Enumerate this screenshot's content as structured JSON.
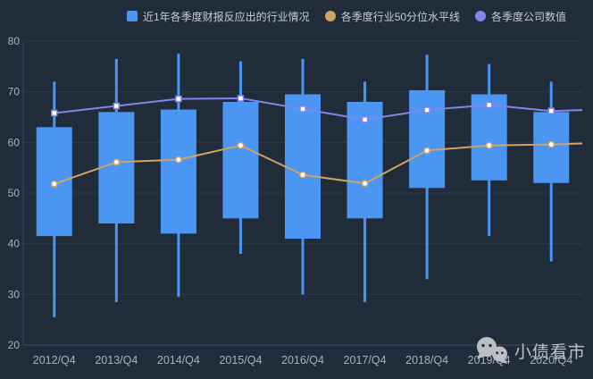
{
  "legend": {
    "items": [
      {
        "label": "近1年各季度财报反应出的行业情况",
        "marker": "square",
        "color": "#4b96f3"
      },
      {
        "label": "各季度行业50分位水平线",
        "marker": "circle",
        "color": "#d1a366"
      },
      {
        "label": "各季度公司数值",
        "marker": "circle",
        "color": "#8285e9"
      }
    ]
  },
  "watermark": {
    "text": "小债看市"
  },
  "chart_data": {
    "type": "candlestick",
    "title": "",
    "categories": [
      "2012/Q4",
      "2013/Q4",
      "2014/Q4",
      "2015/Q4",
      "2016/Q4",
      "2017/Q4",
      "2018/Q4",
      "2019/Q4",
      "2020/Q4"
    ],
    "series": [
      {
        "name": "近1年各季度财报反应出的行业情况",
        "type": "candlestick",
        "color": "#4b96f3",
        "note": "values are [low, boxBottom, boxTop, high]",
        "values": [
          [
            25.5,
            41.5,
            63.0,
            72.0
          ],
          [
            28.5,
            44.0,
            66.0,
            76.5
          ],
          [
            29.5,
            42.0,
            66.5,
            77.5
          ],
          [
            38.0,
            45.0,
            68.0,
            76.0
          ],
          [
            30.0,
            41.0,
            69.5,
            76.5
          ],
          [
            28.5,
            45.0,
            68.0,
            72.0
          ],
          [
            33.0,
            51.0,
            70.3,
            77.3
          ],
          [
            41.5,
            52.5,
            69.5,
            75.5
          ],
          [
            36.5,
            52.0,
            66.0,
            72.0
          ]
        ]
      },
      {
        "name": "各季度行业50分位水平线",
        "type": "line",
        "color": "#d1a366",
        "marker": "circle",
        "values": [
          51.8,
          56.1,
          56.6,
          59.4,
          53.6,
          51.9,
          58.4,
          59.4,
          59.6
        ],
        "right_edge_value": 59.8
      },
      {
        "name": "各季度公司数值",
        "type": "line",
        "color": "#8285e9",
        "marker": "square",
        "values": [
          65.8,
          67.2,
          68.6,
          68.7,
          66.6,
          64.5,
          66.4,
          67.4,
          66.2
        ],
        "right_edge_value": 66.4
      }
    ],
    "xlabel": "",
    "ylabel": "",
    "ylim": [
      20,
      80
    ],
    "yticks": [
      20,
      30,
      40,
      50,
      60,
      70,
      80
    ],
    "grid": true,
    "legend_position": "top"
  },
  "colors": {
    "background": "#212c3a",
    "gridline": "#2d3a4b",
    "axis": "#404e63",
    "tick_text": "#a7b1bf",
    "legend_text": "#c5cbd6",
    "watermark": "#c9cbce",
    "candle": "#4b96f3",
    "line_percentile": "#d1a366",
    "line_company": "#8285e9"
  }
}
